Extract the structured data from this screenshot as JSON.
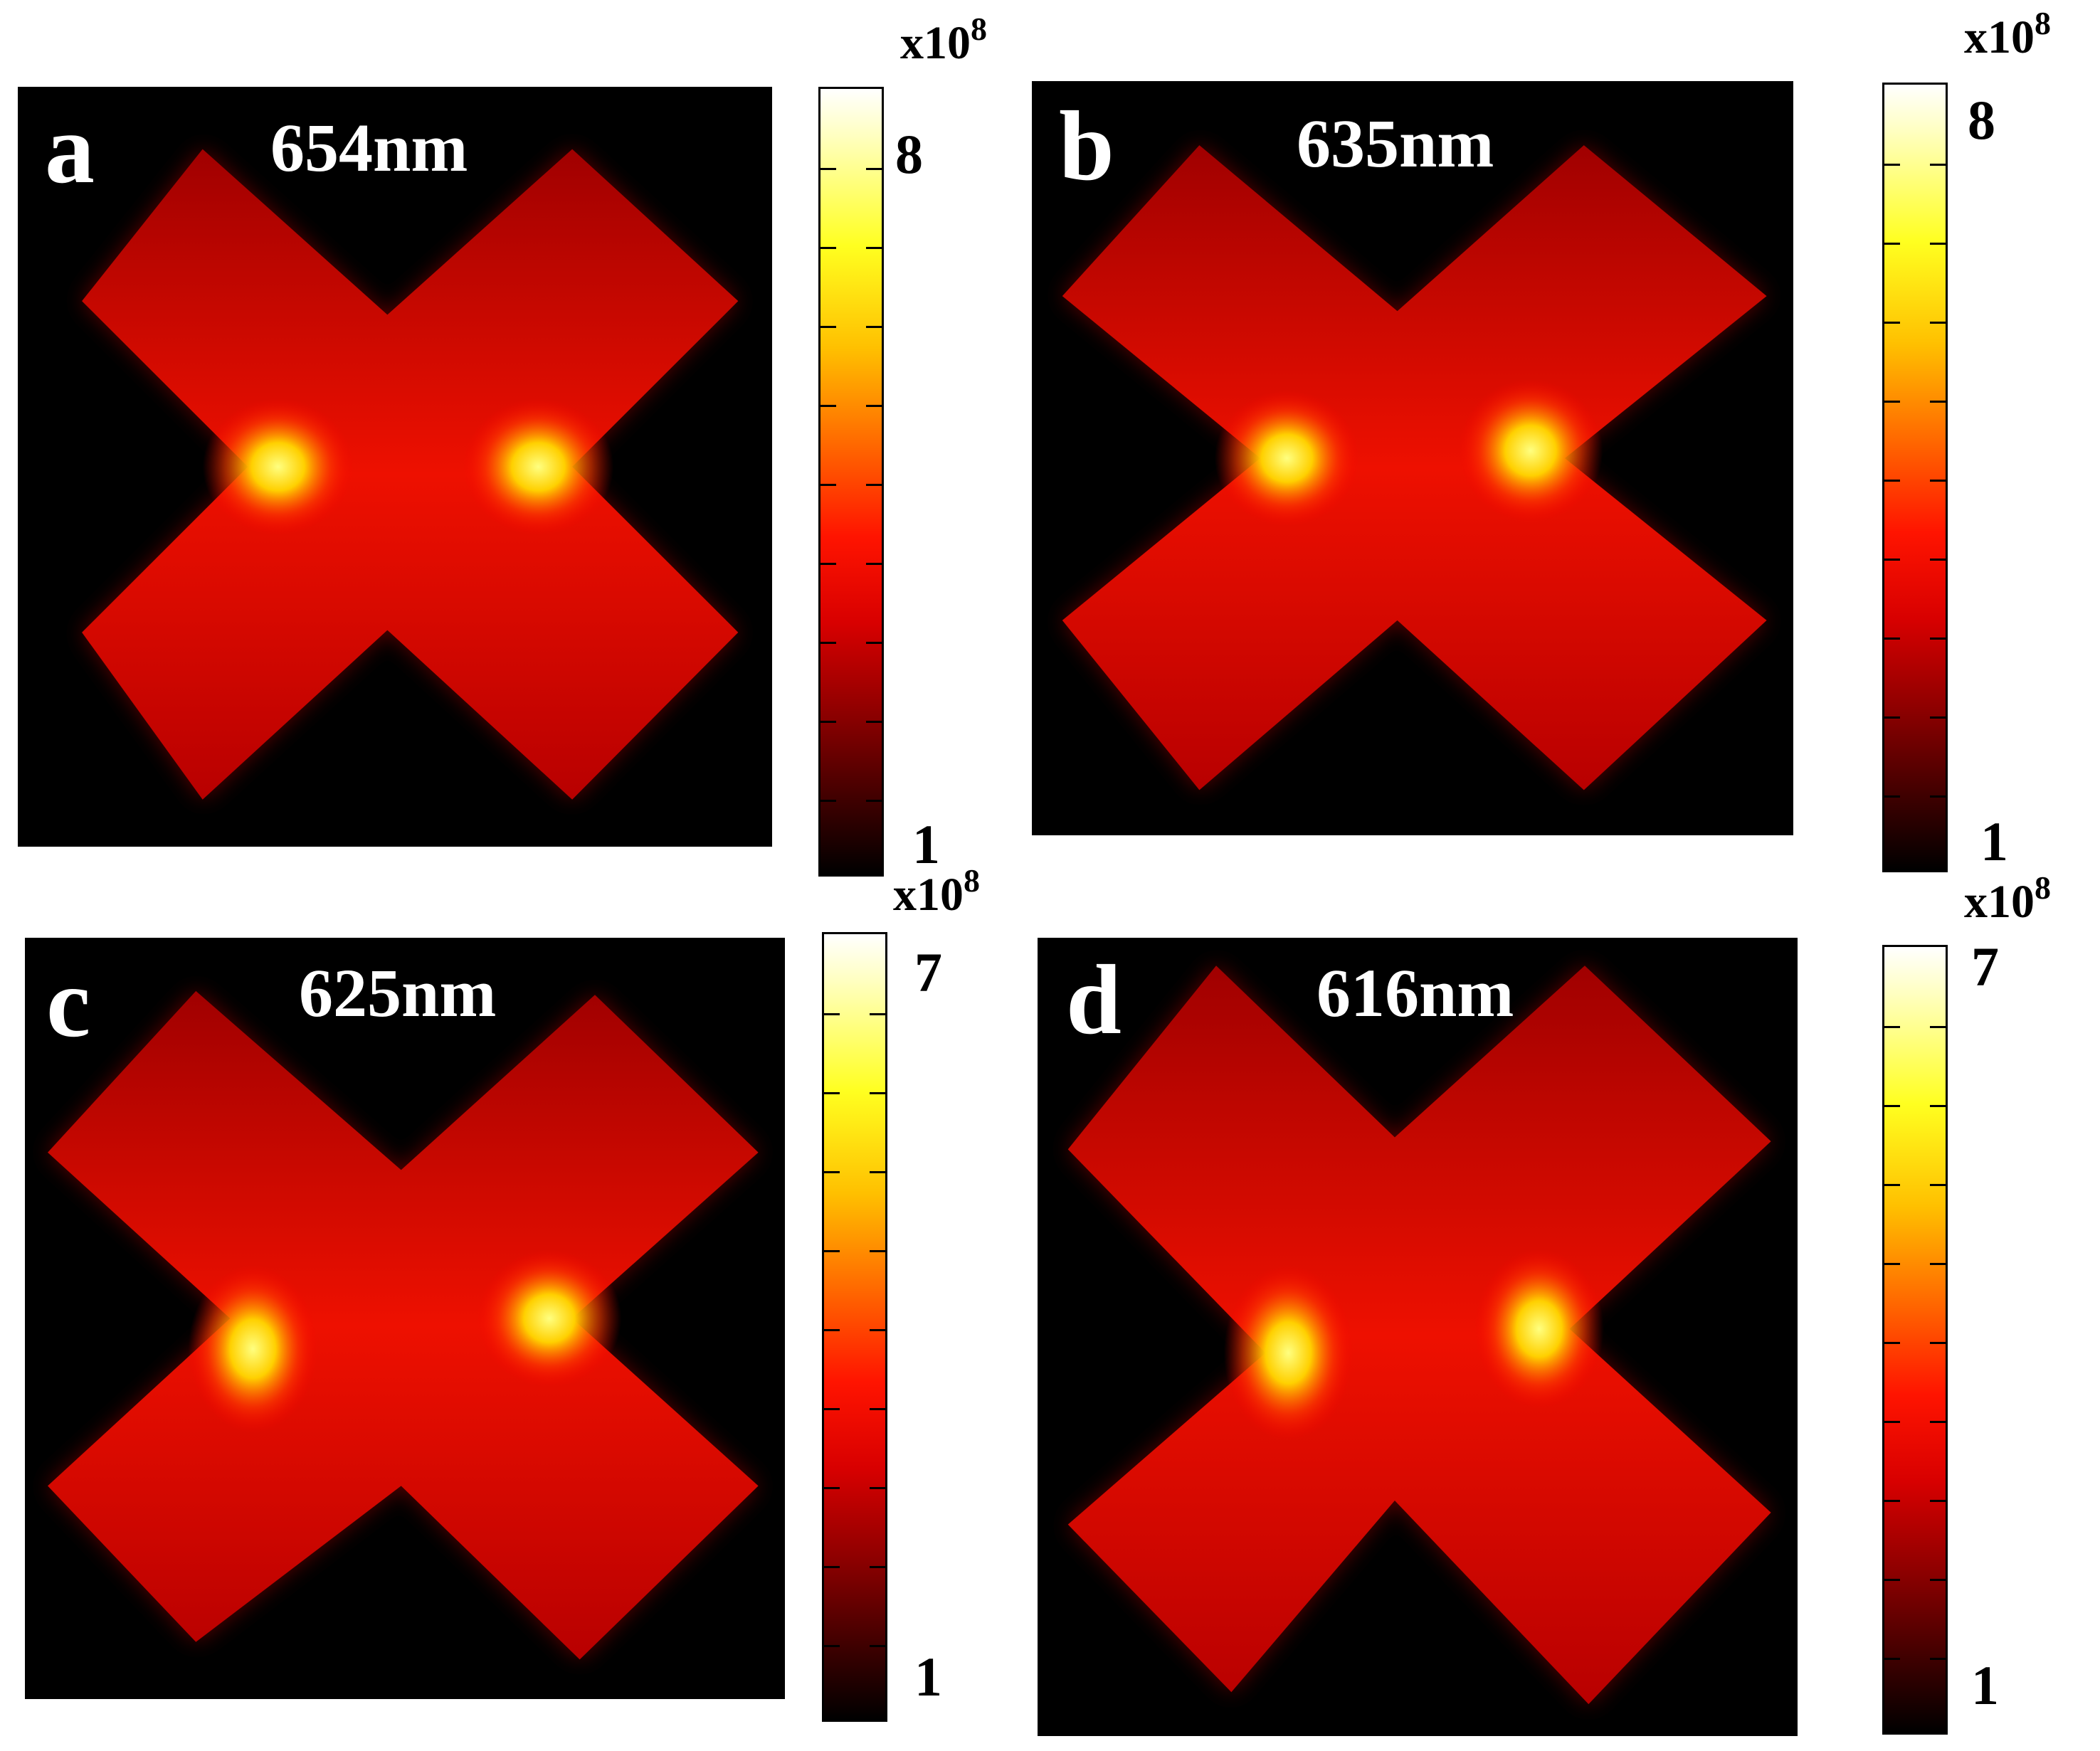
{
  "panels": [
    {
      "letter": "a",
      "wavelength": "654nm",
      "colorbar": {
        "multiplier": "x10",
        "exponent": "8",
        "max_label": "8",
        "min_label": "1"
      }
    },
    {
      "letter": "b",
      "wavelength": "635nm",
      "colorbar": {
        "multiplier": "x10",
        "exponent": "8",
        "max_label": "8",
        "min_label": "1"
      }
    },
    {
      "letter": "c",
      "wavelength": "625nm",
      "colorbar": {
        "multiplier": "x10",
        "exponent": "8",
        "max_label": "7",
        "min_label": "1"
      }
    },
    {
      "letter": "d",
      "wavelength": "616nm",
      "colorbar": {
        "multiplier": "x10",
        "exponent": "8",
        "max_label": "7",
        "min_label": "1"
      }
    }
  ],
  "colors": {
    "background": "#000000",
    "field_base": "#c00000",
    "hotspot": "#ffff40"
  }
}
